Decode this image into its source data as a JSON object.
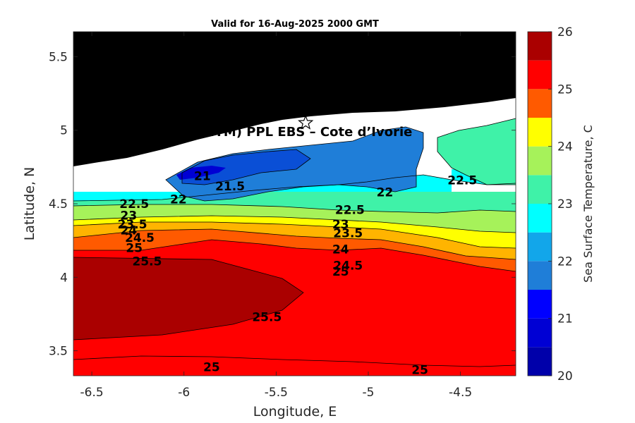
{
  "chart_data": {
    "type": "contourf",
    "title": "Valid for 16-Aug-2025 2000 GMT",
    "xlabel": "Longitude, E",
    "ylabel": "Latitude, N",
    "xlim": [
      -6.6,
      -4.2
    ],
    "ylim": [
      3.33,
      5.67
    ],
    "xticks": [
      "-6.5",
      "-6",
      "-5.5",
      "-5",
      "-4.5"
    ],
    "yticks": [
      "3.5",
      "4",
      "4.5",
      "5",
      "5.5"
    ],
    "colorbar": {
      "label": "Sea Surface Temperature, C",
      "range": [
        20,
        26
      ],
      "step": 0.5,
      "ticks": [
        "20",
        "21",
        "22",
        "23",
        "24",
        "25",
        "26"
      ],
      "colors": [
        "#0000aa",
        "#0000d4",
        "#0000ff",
        "#0a4fd6",
        "#1f7ed8",
        "#12a6ea",
        "#00ffff",
        "#3ff2a8",
        "#a6f25a",
        "#ffff00",
        "#ffb400",
        "#ff5a00",
        "#ff0000",
        "#aa0000"
      ]
    },
    "annotation": "A (ONHYM) PPL EBS  – Cote d’Ivorie",
    "marker": {
      "shape": "star",
      "lon": -5.34,
      "lat": 5.05
    },
    "contour_labels": [
      {
        "text": "21",
        "lon": -5.9,
        "lat": 4.69
      },
      {
        "text": "21.5",
        "lon": -5.75,
        "lat": 4.62
      },
      {
        "text": "22",
        "lon": -6.03,
        "lat": 4.53
      },
      {
        "text": "22",
        "lon": -4.91,
        "lat": 4.58
      },
      {
        "text": "22.5",
        "lon": -4.49,
        "lat": 4.66
      },
      {
        "text": "22.5",
        "lon": -6.27,
        "lat": 4.5
      },
      {
        "text": "23",
        "lon": -6.3,
        "lat": 4.42
      },
      {
        "text": "23.5",
        "lon": -6.28,
        "lat": 4.36
      },
      {
        "text": "24",
        "lon": -6.3,
        "lat": 4.32
      },
      {
        "text": "24.5",
        "lon": -6.24,
        "lat": 4.27
      },
      {
        "text": "25",
        "lon": -6.27,
        "lat": 4.2
      },
      {
        "text": "25.5",
        "lon": -6.2,
        "lat": 4.11
      },
      {
        "text": "22.5",
        "lon": -5.1,
        "lat": 4.46
      },
      {
        "text": "23",
        "lon": -5.15,
        "lat": 4.36
      },
      {
        "text": "23.5",
        "lon": -5.11,
        "lat": 4.3
      },
      {
        "text": "24",
        "lon": -5.15,
        "lat": 4.19
      },
      {
        "text": "24.5",
        "lon": -5.11,
        "lat": 4.08
      },
      {
        "text": "25",
        "lon": -5.15,
        "lat": 4.04
      },
      {
        "text": "25.5",
        "lon": -5.55,
        "lat": 3.73
      },
      {
        "text": "25",
        "lon": -5.85,
        "lat": 3.39
      },
      {
        "text": "25",
        "lon": -4.72,
        "lat": 3.37
      }
    ]
  }
}
